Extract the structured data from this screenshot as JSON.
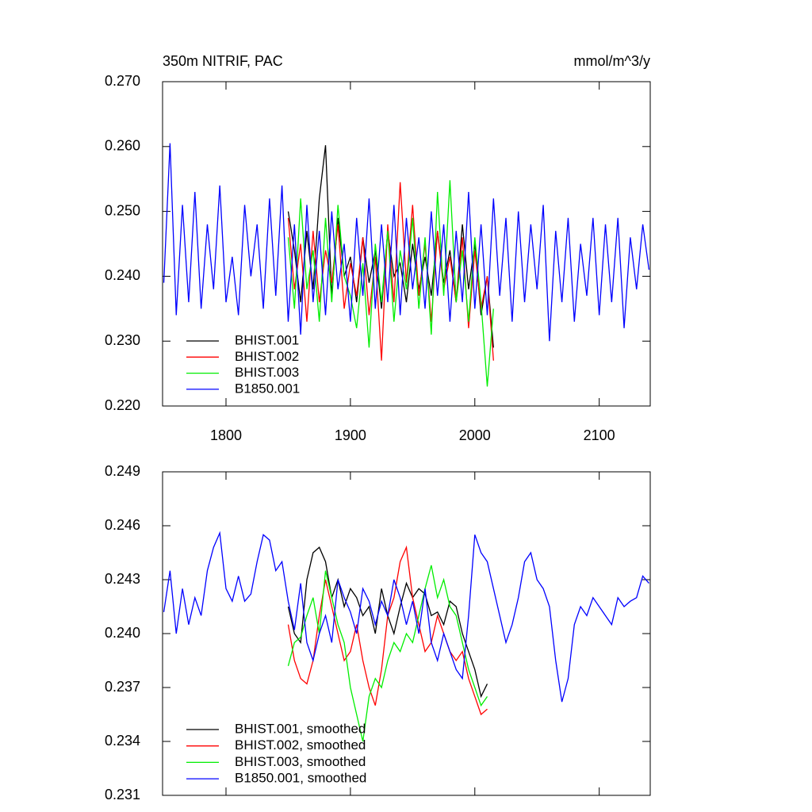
{
  "chart_data": [
    {
      "type": "line",
      "title": "350m NITRIF, PAC",
      "units": "mmol/m^3/y",
      "x": [
        1750,
        1755,
        1760,
        1765,
        1770,
        1775,
        1780,
        1785,
        1790,
        1795,
        1800,
        1805,
        1810,
        1815,
        1820,
        1825,
        1830,
        1835,
        1840,
        1845,
        1850,
        1855,
        1860,
        1865,
        1870,
        1875,
        1880,
        1885,
        1890,
        1895,
        1900,
        1905,
        1910,
        1915,
        1920,
        1925,
        1930,
        1935,
        1940,
        1945,
        1950,
        1955,
        1960,
        1965,
        1970,
        1975,
        1980,
        1985,
        1990,
        1995,
        2000,
        2005,
        2010,
        2015,
        2020,
        2025,
        2030,
        2035,
        2040,
        2045,
        2050,
        2055,
        2060,
        2065,
        2070,
        2075,
        2080,
        2085,
        2090,
        2095,
        2100,
        2105,
        2110,
        2115,
        2120,
        2125,
        2130,
        2135,
        2140
      ],
      "xlim": [
        1749,
        2141
      ],
      "xticks": [
        1800,
        1900,
        2000,
        2100
      ],
      "ylim": [
        0.22,
        0.27
      ],
      "yticks": [
        {
          "value": 0.22,
          "label": "0.220"
        },
        {
          "value": 0.23,
          "label": "0.230"
        },
        {
          "value": 0.24,
          "label": "0.240"
        },
        {
          "value": 0.25,
          "label": "0.250"
        },
        {
          "value": 0.26,
          "label": "0.260"
        },
        {
          "value": 0.27,
          "label": "0.270"
        }
      ],
      "series": [
        {
          "name": "BHIST.001",
          "color": "#000000",
          "values": [
            null,
            null,
            null,
            null,
            null,
            null,
            null,
            null,
            null,
            null,
            null,
            null,
            null,
            null,
            null,
            null,
            null,
            null,
            null,
            null,
            0.25,
            0.244,
            0.236,
            0.247,
            0.238,
            0.252,
            0.2602,
            0.237,
            0.249,
            0.24,
            0.243,
            0.236,
            0.246,
            0.239,
            0.244,
            0.235,
            0.247,
            0.24,
            0.242,
            0.236,
            0.245,
            0.238,
            0.243,
            0.237,
            0.247,
            0.239,
            0.244,
            0.236,
            0.248,
            0.238,
            0.245,
            0.234,
            0.24,
            0.229,
            null,
            null,
            null,
            null,
            null,
            null,
            null,
            null,
            null,
            null,
            null,
            null,
            null,
            null,
            null,
            null,
            null,
            null,
            null,
            null,
            null,
            null,
            null,
            null,
            null
          ]
        },
        {
          "name": "BHIST.002",
          "color": "#ff0000",
          "values": [
            null,
            null,
            null,
            null,
            null,
            null,
            null,
            null,
            null,
            null,
            null,
            null,
            null,
            null,
            null,
            null,
            null,
            null,
            null,
            null,
            0.249,
            0.238,
            0.245,
            0.233,
            0.247,
            0.236,
            0.244,
            0.239,
            0.248,
            0.235,
            0.242,
            0.237,
            0.246,
            0.234,
            0.243,
            0.227,
            0.248,
            0.236,
            0.2545,
            0.239,
            0.251,
            0.237,
            0.245,
            0.233,
            0.247,
            0.238,
            0.243,
            0.236,
            0.246,
            0.232,
            0.244,
            0.235,
            0.24,
            0.227,
            null,
            null,
            null,
            null,
            null,
            null,
            null,
            null,
            null,
            null,
            null,
            null,
            null,
            null,
            null,
            null,
            null,
            null,
            null,
            null,
            null,
            null,
            null,
            null,
            null
          ]
        },
        {
          "name": "BHIST.003",
          "color": "#00ee00",
          "values": [
            null,
            null,
            null,
            null,
            null,
            null,
            null,
            null,
            null,
            null,
            null,
            null,
            null,
            null,
            null,
            null,
            null,
            null,
            null,
            null,
            0.246,
            0.235,
            0.252,
            0.238,
            0.244,
            0.233,
            0.249,
            0.236,
            0.251,
            0.24,
            0.237,
            0.232,
            0.242,
            0.229,
            0.245,
            0.236,
            0.247,
            0.233,
            0.244,
            0.238,
            0.249,
            0.235,
            0.246,
            0.231,
            0.253,
            0.237,
            0.2548,
            0.236,
            0.244,
            0.233,
            0.246,
            0.236,
            0.223,
            0.235,
            null,
            null,
            null,
            null,
            null,
            null,
            null,
            null,
            null,
            null,
            null,
            null,
            null,
            null,
            null,
            null,
            null,
            null,
            null,
            null,
            null,
            null,
            null,
            null,
            null
          ]
        },
        {
          "name": "B1850.001",
          "color": "#0000ff",
          "values": [
            0.239,
            0.2605,
            0.234,
            0.251,
            0.236,
            0.253,
            0.235,
            0.248,
            0.238,
            0.254,
            0.236,
            0.243,
            0.234,
            0.251,
            0.24,
            0.248,
            0.235,
            0.252,
            0.237,
            0.254,
            0.233,
            0.248,
            0.231,
            0.251,
            0.236,
            0.247,
            0.234,
            0.25,
            0.238,
            0.245,
            0.233,
            0.249,
            0.237,
            0.252,
            0.235,
            0.248,
            0.236,
            0.251,
            0.234,
            0.249,
            0.238,
            0.246,
            0.235,
            0.25,
            0.237,
            0.248,
            0.233,
            0.247,
            0.236,
            0.253,
            0.235,
            0.248,
            0.234,
            0.252,
            0.237,
            0.249,
            0.233,
            0.25,
            0.236,
            0.248,
            0.238,
            0.251,
            0.23,
            0.247,
            0.236,
            0.249,
            0.233,
            0.245,
            0.237,
            0.249,
            0.234,
            0.248,
            0.236,
            0.249,
            0.232,
            0.246,
            0.238,
            0.248,
            0.241
          ]
        }
      ]
    },
    {
      "type": "line",
      "x": [
        1750,
        1755,
        1760,
        1765,
        1770,
        1775,
        1780,
        1785,
        1790,
        1795,
        1800,
        1805,
        1810,
        1815,
        1820,
        1825,
        1830,
        1835,
        1840,
        1845,
        1850,
        1855,
        1860,
        1865,
        1870,
        1875,
        1880,
        1885,
        1890,
        1895,
        1900,
        1905,
        1910,
        1915,
        1920,
        1925,
        1930,
        1935,
        1940,
        1945,
        1950,
        1955,
        1960,
        1965,
        1970,
        1975,
        1980,
        1985,
        1990,
        1995,
        2000,
        2005,
        2010,
        2015,
        2020,
        2025,
        2030,
        2035,
        2040,
        2045,
        2050,
        2055,
        2060,
        2065,
        2070,
        2075,
        2080,
        2085,
        2090,
        2095,
        2100,
        2105,
        2110,
        2115,
        2120,
        2125,
        2130,
        2135,
        2140
      ],
      "xlim": [
        1749,
        2141
      ],
      "xticks": [
        1800,
        1900,
        2000,
        2100
      ],
      "ylim": [
        0.231,
        0.249
      ],
      "yticks": [
        0.231,
        0.234,
        0.237,
        {
          "value": 0.24,
          "label": "0.240"
        },
        0.243,
        0.246,
        0.249
      ],
      "series": [
        {
          "name": "BHIST.001, smoothed",
          "color": "#000000",
          "values": [
            null,
            null,
            null,
            null,
            null,
            null,
            null,
            null,
            null,
            null,
            null,
            null,
            null,
            null,
            null,
            null,
            null,
            null,
            null,
            null,
            0.2415,
            0.24,
            0.2395,
            0.243,
            0.2445,
            0.2448,
            0.244,
            0.242,
            0.243,
            0.2415,
            0.2425,
            0.242,
            0.241,
            0.2415,
            0.24,
            0.2425,
            0.241,
            0.24,
            0.2415,
            0.2428,
            0.242,
            0.2425,
            0.2422,
            0.241,
            0.2412,
            0.2405,
            0.2418,
            0.2415,
            0.24,
            0.239,
            0.238,
            0.2365,
            0.2372,
            null,
            null,
            null,
            null,
            null,
            null,
            null,
            null,
            null,
            null,
            null,
            null,
            null,
            null,
            null,
            null,
            null,
            null,
            null,
            null,
            null,
            null,
            null,
            null,
            null,
            null
          ]
        },
        {
          "name": "BHIST.002, smoothed",
          "color": "#ff0000",
          "values": [
            null,
            null,
            null,
            null,
            null,
            null,
            null,
            null,
            null,
            null,
            null,
            null,
            null,
            null,
            null,
            null,
            null,
            null,
            null,
            null,
            0.2405,
            0.2385,
            0.2375,
            0.2372,
            0.2385,
            0.241,
            0.243,
            0.2415,
            0.24,
            0.2385,
            0.239,
            0.2405,
            0.2385,
            0.237,
            0.236,
            0.238,
            0.241,
            0.242,
            0.244,
            0.2448,
            0.242,
            0.2405,
            0.239,
            0.2395,
            0.241,
            0.24,
            0.239,
            0.2385,
            0.239,
            0.2375,
            0.2365,
            0.2355,
            0.2358,
            null,
            null,
            null,
            null,
            null,
            null,
            null,
            null,
            null,
            null,
            null,
            null,
            null,
            null,
            null,
            null,
            null,
            null,
            null,
            null,
            null,
            null,
            null,
            null,
            null,
            null
          ]
        },
        {
          "name": "BHIST.003, smoothed",
          "color": "#00ee00",
          "values": [
            null,
            null,
            null,
            null,
            null,
            null,
            null,
            null,
            null,
            null,
            null,
            null,
            null,
            null,
            null,
            null,
            null,
            null,
            null,
            null,
            0.2382,
            0.2395,
            0.2398,
            0.241,
            0.242,
            0.24,
            0.2435,
            0.242,
            0.2405,
            0.2395,
            0.237,
            0.2355,
            0.234,
            0.2365,
            0.2375,
            0.237,
            0.2385,
            0.2395,
            0.239,
            0.24,
            0.2395,
            0.241,
            0.2425,
            0.2438,
            0.242,
            0.243,
            0.2415,
            0.241,
            0.2395,
            0.238,
            0.237,
            0.236,
            0.2365,
            null,
            null,
            null,
            null,
            null,
            null,
            null,
            null,
            null,
            null,
            null,
            null,
            null,
            null,
            null,
            null,
            null,
            null,
            null,
            null,
            null,
            null,
            null,
            null,
            null,
            null
          ]
        },
        {
          "name": "B1850.001, smoothed",
          "color": "#0000ff",
          "values": [
            0.2412,
            0.2435,
            0.24,
            0.2425,
            0.2405,
            0.242,
            0.241,
            0.2435,
            0.2448,
            0.2456,
            0.2425,
            0.2418,
            0.2432,
            0.2418,
            0.2422,
            0.244,
            0.2455,
            0.2452,
            0.2435,
            0.244,
            0.2418,
            0.2402,
            0.2428,
            0.2395,
            0.2385,
            0.24,
            0.241,
            0.2395,
            0.243,
            0.242,
            0.2412,
            0.24,
            0.2425,
            0.2418,
            0.2405,
            0.2418,
            0.241,
            0.243,
            0.242,
            0.2405,
            0.2418,
            0.24,
            0.2425,
            0.2395,
            0.2385,
            0.24,
            0.239,
            0.238,
            0.2375,
            0.241,
            0.2455,
            0.2445,
            0.244,
            0.2425,
            0.241,
            0.2395,
            0.2405,
            0.242,
            0.244,
            0.2445,
            0.243,
            0.2425,
            0.2415,
            0.2385,
            0.2362,
            0.2375,
            0.2405,
            0.2415,
            0.241,
            0.242,
            0.2415,
            0.241,
            0.2405,
            0.242,
            0.2415,
            0.2418,
            0.242,
            0.2432,
            0.2428
          ]
        }
      ]
    }
  ]
}
